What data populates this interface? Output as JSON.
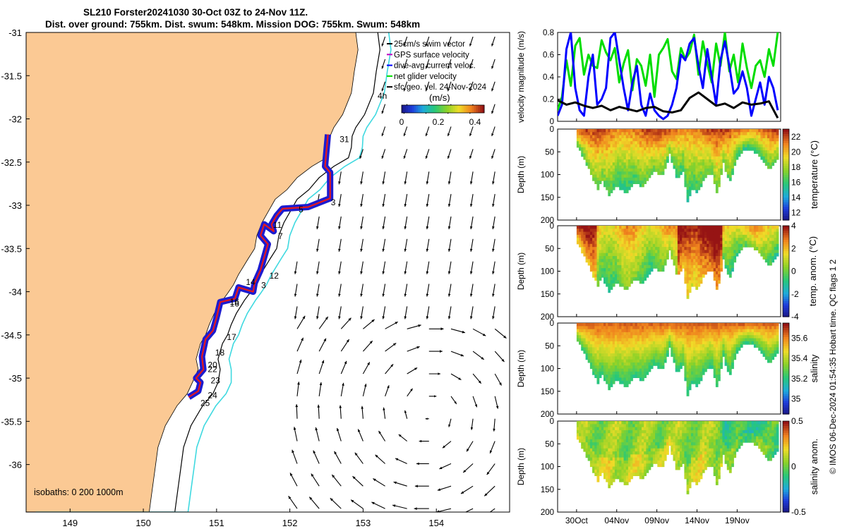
{
  "title": {
    "line1": "SL210 Forster20241030 30-Oct 03Z to 24-Nov 11Z.",
    "line2": "Dist. over ground: 755km. Dist. swum: 548km. Mission DOG: 755km. Swum: 548km"
  },
  "credit": "© IMOS 06-Dec-2024 01:54:35 Hobart time. QC flags 1  2",
  "colors": {
    "land": "#fbc994",
    "track_red": "#e5191d",
    "track_blue": "#1c1cd0",
    "isobath_200": "#000000",
    "isobath_1000": "#3fd9e0",
    "gps": "#00dd00",
    "dive": "#0000ff",
    "geo": "#000000"
  },
  "chart_data": [
    {
      "type": "map",
      "name": "glider-track-map",
      "xlim": [
        148.4,
        155.0
      ],
      "ylim": [
        -36.55,
        -31.0
      ],
      "x_ticks": [
        149,
        150,
        151,
        152,
        153,
        154
      ],
      "y_ticks": [
        -31,
        -31.5,
        -32,
        -32.5,
        -33,
        -33.5,
        -34,
        -34.5,
        -35,
        -35.5,
        -36
      ],
      "x_tick_labels": [
        "149",
        "150",
        "151",
        "152",
        "153",
        "154"
      ],
      "y_tick_labels": [
        "-31",
        "-31.5",
        "-32",
        "-32.5",
        "-33",
        "-33.5",
        "-34",
        "-34.5",
        "-35",
        "-35.5",
        "-36"
      ],
      "legend": [
        "25cm/s swim vector",
        "GPS surface velocity",
        "dive-avg current veloc.",
        "net glider velocity",
        "sfc geo. vel. 24-Nov-2024"
      ],
      "colorbar": {
        "label": "(m/s)",
        "ticks": [
          "0",
          "0.2",
          "0.4"
        ],
        "range": [
          0,
          0.45
        ]
      },
      "isobaths_label": "isobaths: 0   200  1000m",
      "isobath_tag": "4h",
      "track_labels": [
        {
          "t": "31",
          "lon": 152.68,
          "lat": -32.27
        },
        {
          "t": "3",
          "lon": 152.56,
          "lat": -33.0
        },
        {
          "t": "5",
          "lon": 152.12,
          "lat": -33.08
        },
        {
          "t": "11",
          "lon": 151.77,
          "lat": -33.26
        },
        {
          "t": "7",
          "lon": 151.84,
          "lat": -33.39
        },
        {
          "t": "12",
          "lon": 151.72,
          "lat": -33.85
        },
        {
          "t": "14",
          "lon": 151.4,
          "lat": -33.92
        },
        {
          "t": "3",
          "lon": 151.61,
          "lat": -33.96
        },
        {
          "t": "16",
          "lon": 151.18,
          "lat": -34.15
        },
        {
          "t": "16",
          "lon": 151.18,
          "lat": -34.17
        },
        {
          "t": "17",
          "lon": 151.14,
          "lat": -34.56
        },
        {
          "t": "18",
          "lon": 150.98,
          "lat": -34.74
        },
        {
          "t": "20",
          "lon": 150.88,
          "lat": -34.88
        },
        {
          "t": "22",
          "lon": 150.88,
          "lat": -34.93
        },
        {
          "t": "23",
          "lon": 150.92,
          "lat": -35.06
        },
        {
          "t": "24",
          "lon": 150.88,
          "lat": -35.23
        },
        {
          "t": "25",
          "lon": 150.78,
          "lat": -35.32
        }
      ]
    },
    {
      "type": "line",
      "name": "velocity-magnitude",
      "ylabel": "velocity magnitude (m/s)",
      "ylim": [
        0,
        0.8
      ],
      "y_ticks": [
        "0",
        "0.2",
        "0.4",
        "0.6",
        "0.8"
      ],
      "xlim": [
        0,
        25.33
      ],
      "series": [
        {
          "name": "GPS surface velocity",
          "x": [
            0,
            0.5,
            1,
            1.5,
            2,
            2.5,
            3,
            3.5,
            4,
            4.5,
            5,
            5.5,
            6,
            6.5,
            7,
            7.5,
            8,
            8.5,
            9,
            9.5,
            10,
            10.5,
            11,
            11.5,
            12,
            12.5,
            13,
            13.5,
            14,
            14.5,
            15,
            15.5,
            16,
            16.5,
            17,
            17.5,
            18,
            18.5,
            19,
            19.5,
            20,
            20.5,
            21,
            21.5,
            22,
            22.5,
            23,
            23.5,
            24,
            24.5,
            25
          ],
          "y": [
            0.1,
            0.22,
            0.55,
            0.32,
            0.68,
            0.75,
            0.42,
            0.6,
            0.5,
            0.48,
            0.73,
            0.62,
            0.55,
            0.66,
            0.35,
            0.52,
            0.64,
            0.28,
            0.56,
            0.5,
            0.32,
            0.6,
            0.22,
            0.6,
            0.66,
            0.74,
            0.45,
            0.38,
            0.66,
            0.56,
            0.62,
            0.78,
            0.42,
            0.72,
            0.52,
            0.35,
            0.7,
            0.5,
            0.8,
            0.45,
            0.6,
            0.35,
            0.7,
            0.48,
            0.3,
            0.5,
            0.55,
            0.4,
            0.65,
            0.5,
            0.8
          ]
        },
        {
          "name": "dive-avg current veloc.",
          "x": [
            0,
            0.5,
            1,
            1.5,
            2,
            2.5,
            3,
            3.5,
            4,
            4.5,
            5,
            5.5,
            6,
            6.5,
            7,
            7.5,
            8,
            8.5,
            9,
            9.5,
            10,
            10.5,
            11,
            11.5,
            12,
            12.5,
            13,
            13.5,
            14,
            14.5,
            15,
            15.5,
            16,
            16.5,
            17,
            17.5,
            18,
            18.5,
            19,
            19.5,
            20,
            20.5,
            21,
            21.5,
            22,
            22.5,
            23,
            23.5,
            24,
            24.5,
            25
          ],
          "y": [
            0.05,
            0.15,
            0.65,
            0.8,
            0.3,
            0.1,
            0.05,
            0.4,
            0.6,
            0.15,
            0.2,
            0.3,
            0.75,
            0.8,
            0.55,
            0.3,
            0.1,
            0.35,
            0.5,
            0.15,
            0.05,
            0.25,
            0.1,
            0.05,
            0.02,
            0.05,
            0.15,
            0.3,
            0.6,
            0.55,
            0.7,
            0.75,
            0.5,
            0.3,
            0.65,
            0.4,
            0.15,
            0.55,
            0.72,
            0.5,
            0.25,
            0.3,
            0.45,
            0.3,
            0.05,
            0.2,
            0.35,
            0.15,
            0.4,
            0.3,
            0.1
          ]
        },
        {
          "name": "net glider velocity",
          "x": [
            0,
            1,
            2,
            3,
            4,
            5,
            6,
            7,
            8,
            9,
            10,
            11,
            12,
            13,
            14,
            15,
            16,
            17,
            18,
            19,
            20,
            21,
            22,
            23,
            24,
            25
          ],
          "y": [
            0.19,
            0.15,
            0.17,
            0.14,
            0.12,
            0.14,
            0.1,
            0.13,
            0.11,
            0.09,
            0.12,
            0.13,
            0.09,
            0.08,
            0.1,
            0.21,
            0.26,
            0.2,
            0.14,
            0.16,
            0.12,
            0.17,
            0.15,
            0.16,
            0.18,
            0.03
          ]
        }
      ]
    },
    {
      "type": "heatmap",
      "name": "temperature-section",
      "ylabel": "Depth (m)",
      "ylim": [
        0,
        200
      ],
      "y_ticks": [
        "0",
        "50",
        "100",
        "150",
        "200"
      ],
      "colorbar_label": "temperature (°C)",
      "colorbar_ticks": [
        "12",
        "14",
        "16",
        "18",
        "20",
        "22"
      ],
      "crange": [
        11,
        23
      ]
    },
    {
      "type": "heatmap",
      "name": "temperature-anomaly-section",
      "ylabel": "Depth (m)",
      "ylim": [
        0,
        200
      ],
      "y_ticks": [
        "0",
        "50",
        "100",
        "150",
        "200"
      ],
      "colorbar_label": "temp. anom. (°C)",
      "colorbar_ticks": [
        "-4",
        "-2",
        "0",
        "2",
        "4"
      ],
      "crange": [
        -4,
        4
      ]
    },
    {
      "type": "heatmap",
      "name": "salinity-section",
      "ylabel": "Depth (m)",
      "ylim": [
        0,
        200
      ],
      "y_ticks": [
        "0",
        "50",
        "100",
        "150",
        "200"
      ],
      "colorbar_label": "salinity",
      "colorbar_ticks": [
        "35",
        "35.2",
        "35.4",
        "35.6"
      ],
      "crange": [
        34.85,
        35.75
      ]
    },
    {
      "type": "heatmap",
      "name": "salinity-anomaly-section",
      "ylabel": "Depth (m)",
      "ylim": [
        0,
        200
      ],
      "y_ticks": [
        "0",
        "50",
        "100",
        "150",
        "200"
      ],
      "x_tick_labels": [
        "30Oct",
        "04Nov",
        "09Nov",
        "14Nov",
        "19Nov"
      ],
      "colorbar_label": "salinity anom.",
      "colorbar_ticks": [
        "-0.5",
        "0",
        "0.5"
      ],
      "crange": [
        -0.5,
        0.5
      ]
    }
  ]
}
